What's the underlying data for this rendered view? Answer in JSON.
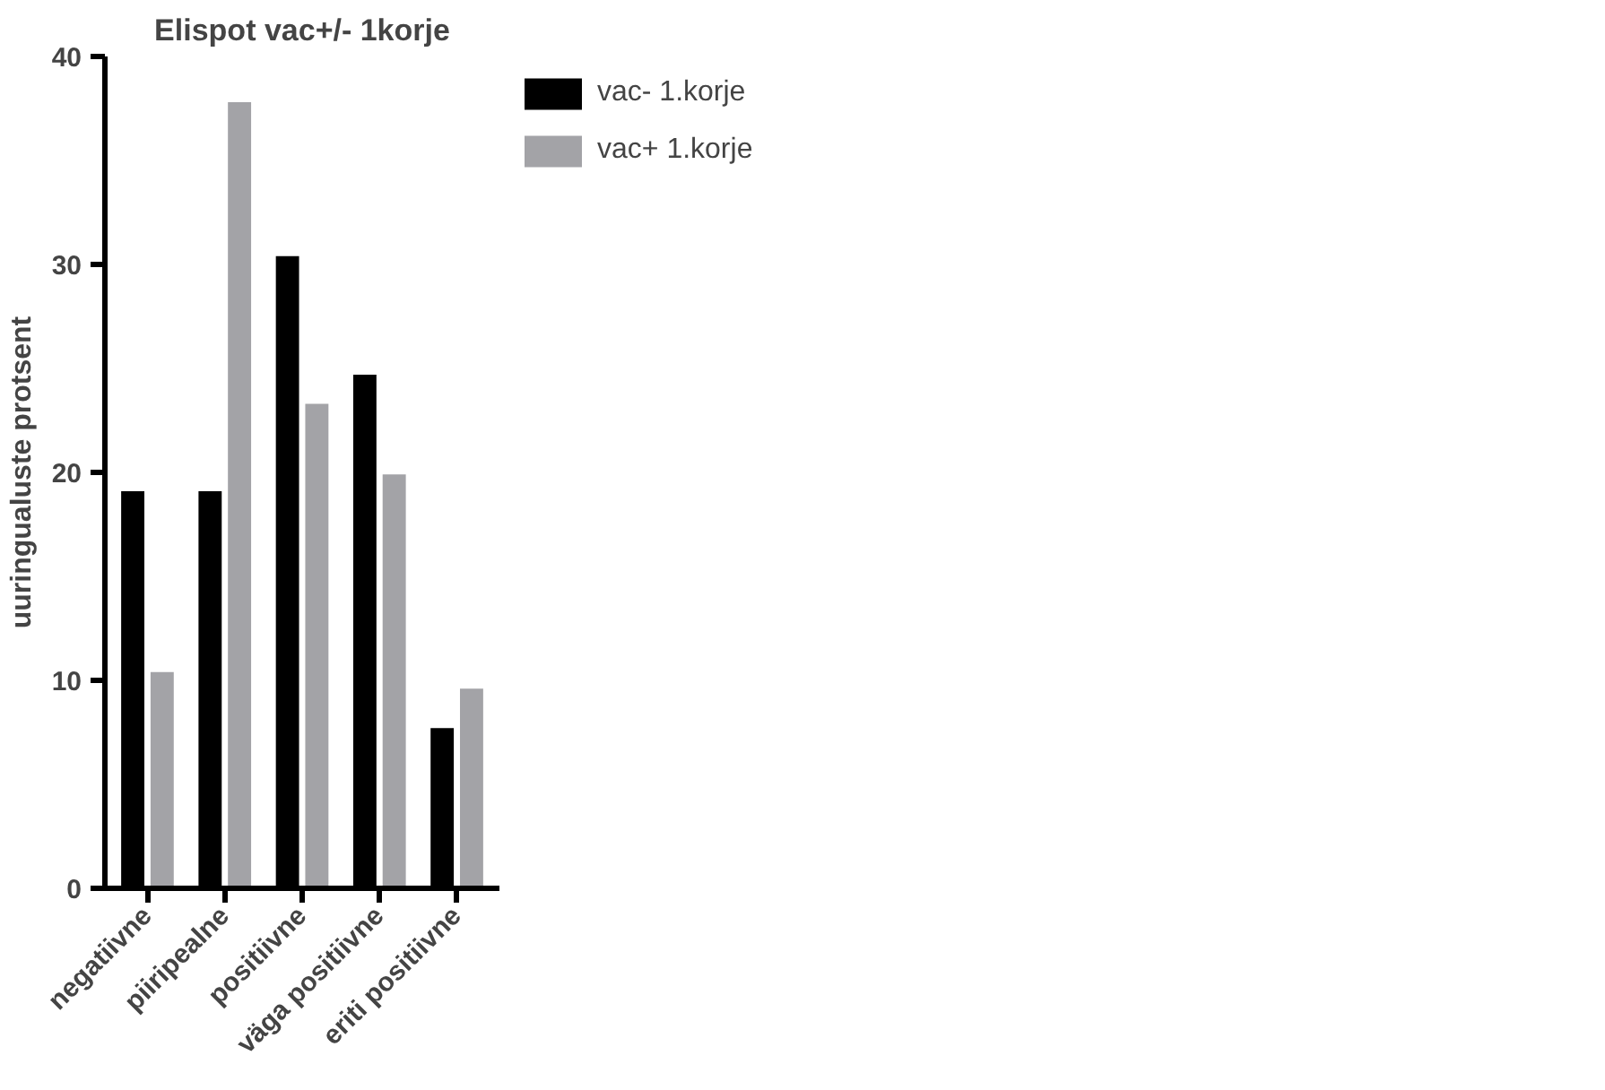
{
  "chart_data": {
    "type": "bar",
    "title": "Elispot vac+/- 1korje",
    "ylabel": "uuringualuste protsent",
    "categories": [
      "negatiivne",
      "piiripealne",
      "positiivne",
      "väga positiivne",
      "eriti positiivne"
    ],
    "series": [
      {
        "name": "vac- 1.korje",
        "color": "#000000",
        "values": [
          19.1,
          19.1,
          30.4,
          24.7,
          7.7
        ]
      },
      {
        "name": "vac+ 1.korje",
        "color": "#a3a3a7",
        "values": [
          10.4,
          37.8,
          23.3,
          19.9,
          9.6
        ]
      }
    ],
    "ylim": [
      0,
      40
    ],
    "yticks": [
      0,
      10,
      20,
      30,
      40
    ],
    "grid": false,
    "legend": "top right"
  }
}
